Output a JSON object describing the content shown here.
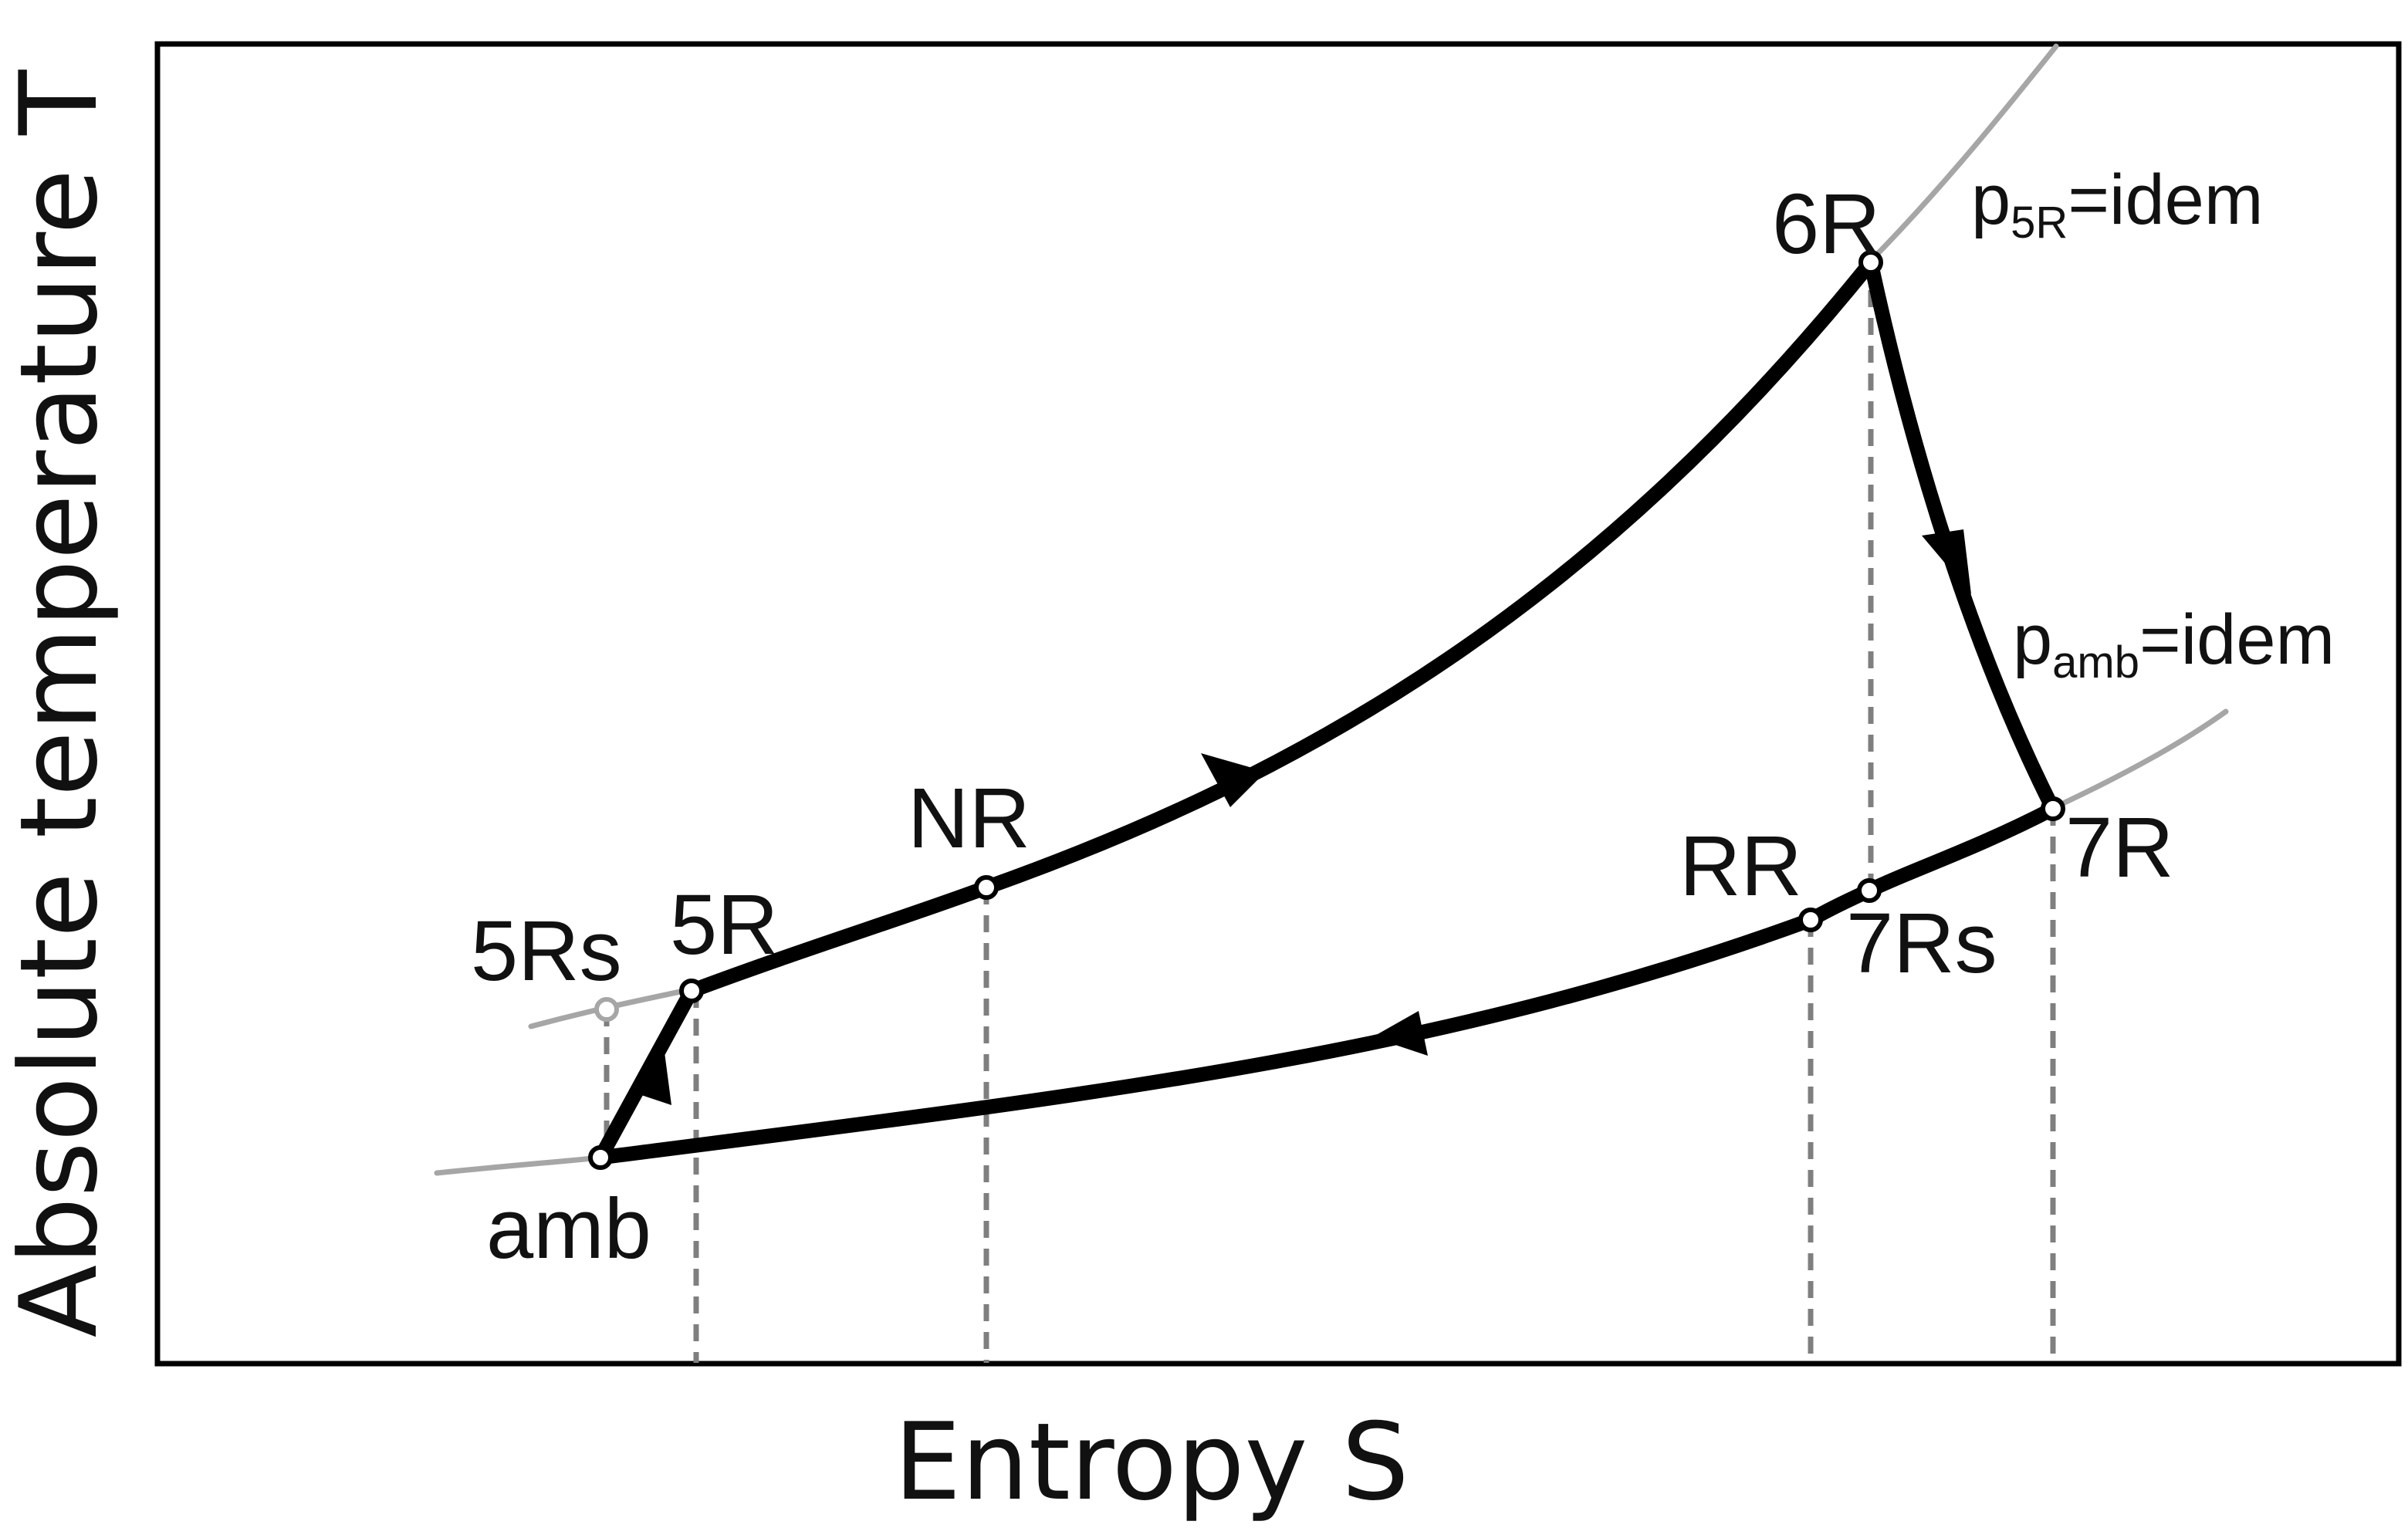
{
  "axes": {
    "x_title": "Entropy S",
    "y_title": "Absolute temperature T"
  },
  "isobars": {
    "high": {
      "p": "p",
      "sub": "5R",
      "rest": "=idem"
    },
    "low": {
      "p": "p",
      "sub": "amb",
      "rest": "=idem"
    }
  },
  "points": {
    "amb": "amb",
    "5Rs": "5Rs",
    "5R": "5R",
    "NR": "NR",
    "6R": "6R",
    "7R": "7R",
    "7Rs": "7Rs",
    "RR": "RR"
  },
  "colors": {
    "cycle": "#000000",
    "isobar": "#a6a6a6",
    "projection": "#7f7f7f",
    "frame": "#000000"
  }
}
